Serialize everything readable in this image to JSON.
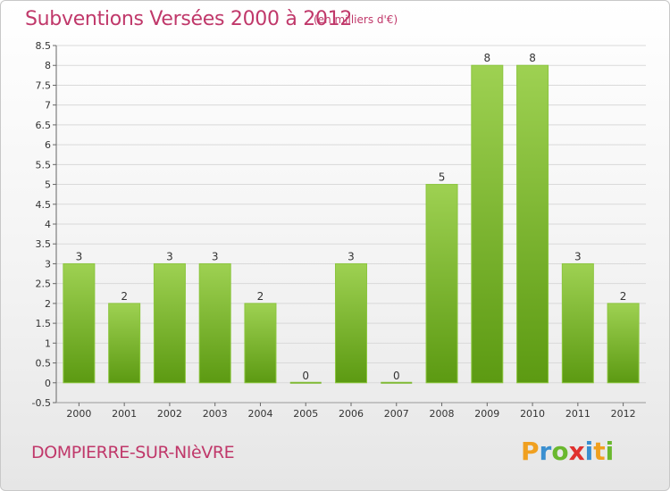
{
  "header": {
    "title": "Subventions Versées 2000 à 2012",
    "unit_note": "(en milliers d'€)"
  },
  "footer": {
    "city": "DOMPIERRE-SUR-NIèVRE",
    "logo_letters": [
      {
        "char": "P",
        "color": "#f0a020"
      },
      {
        "char": "r",
        "color": "#3a8fd0"
      },
      {
        "char": "o",
        "color": "#6ab82e"
      },
      {
        "char": "x",
        "color": "#e0312e"
      },
      {
        "char": "i",
        "color": "#3a8fd0"
      },
      {
        "char": "t",
        "color": "#f0a020"
      },
      {
        "char": "i",
        "color": "#6ab82e"
      }
    ]
  },
  "chart_data": {
    "type": "bar",
    "title": "Subventions Versées 2000 à 2012",
    "subtitle": "(en milliers d'€)",
    "categories": [
      "2000",
      "2001",
      "2002",
      "2003",
      "2004",
      "2005",
      "2006",
      "2007",
      "2008",
      "2009",
      "2010",
      "2011",
      "2012"
    ],
    "values": [
      3,
      2,
      3,
      3,
      2,
      0,
      3,
      0,
      5,
      8,
      8,
      3,
      2
    ],
    "data_labels": [
      "3",
      "2",
      "3",
      "3",
      "2",
      "0",
      "3",
      "0",
      "5",
      "8",
      "8",
      "3",
      "2"
    ],
    "ylim": [
      -0.5,
      8.5
    ],
    "yticks": [
      -0.5,
      0,
      0.5,
      1,
      1.5,
      2,
      2.5,
      3,
      3.5,
      4,
      4.5,
      5,
      5.5,
      6,
      6.5,
      7,
      7.5,
      8,
      8.5
    ],
    "ytick_labels": [
      "-0.5",
      "0",
      "0.5",
      "1",
      "1.5",
      "2",
      "2.5",
      "3",
      "3.5",
      "4",
      "4.5",
      "5",
      "5.5",
      "6",
      "6.5",
      "7",
      "7.5",
      "8",
      "8.5"
    ],
    "grid": true,
    "bar_color_top": "#9ed152",
    "bar_color_bottom": "#5c9a12"
  }
}
